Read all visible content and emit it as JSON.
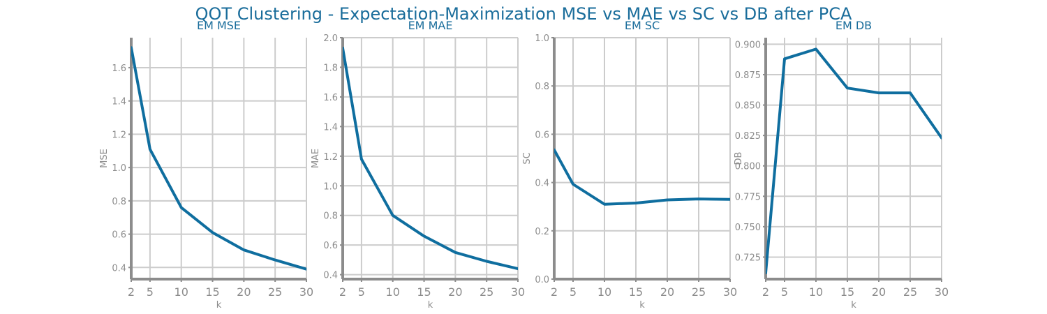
{
  "chart_data": {
    "title": "QOT Clustering - Expectation-Maximization MSE vs MAE vs SC vs DB after PCA",
    "colors": {
      "line": "#0f6e9f",
      "title": "#1a6d9b",
      "axis": "#8c8c8c",
      "grid": "#cccccc"
    },
    "plots": [
      {
        "type": "line",
        "title": "EM MSE",
        "xlabel": "k",
        "ylabel": "MSE",
        "x": [
          2,
          5,
          10,
          15,
          20,
          25,
          30
        ],
        "y": [
          1.72,
          1.11,
          0.76,
          0.61,
          0.505,
          0.445,
          0.39
        ],
        "xlim": [
          2,
          30
        ],
        "ylim": [
          0.33,
          1.78
        ],
        "xticks": [
          2,
          5,
          10,
          15,
          20,
          25,
          30
        ],
        "yticks": [
          0.4,
          0.6,
          0.8,
          1.0,
          1.2,
          1.4,
          1.6
        ],
        "yticklabels": [
          "0.4",
          "0.6",
          "0.8",
          "1.0",
          "1.2",
          "1.4",
          "1.6"
        ],
        "grid": true
      },
      {
        "type": "line",
        "title": "EM MAE",
        "xlabel": "k",
        "ylabel": "MAE",
        "x": [
          2,
          5,
          10,
          15,
          20,
          25,
          30
        ],
        "y": [
          1.93,
          1.18,
          0.8,
          0.66,
          0.55,
          0.49,
          0.44
        ],
        "xlim": [
          2,
          30
        ],
        "ylim": [
          0.37,
          2.0
        ],
        "xticks": [
          2,
          5,
          10,
          15,
          20,
          25,
          30
        ],
        "yticks": [
          0.4,
          0.6,
          0.8,
          1.0,
          1.2,
          1.4,
          1.6,
          1.8,
          2.0
        ],
        "yticklabels": [
          "0.4",
          "0.6",
          "0.8",
          "1.0",
          "1.2",
          "1.4",
          "1.6",
          "1.8",
          "2.0"
        ],
        "grid": true
      },
      {
        "type": "line",
        "title": "EM SC",
        "xlabel": "k",
        "ylabel": "SC",
        "x": [
          2,
          5,
          10,
          15,
          20,
          25,
          30
        ],
        "y": [
          0.535,
          0.393,
          0.31,
          0.315,
          0.328,
          0.332,
          0.33
        ],
        "xlim": [
          2,
          30
        ],
        "ylim": [
          0.0,
          1.0
        ],
        "xticks": [
          2,
          5,
          10,
          15,
          20,
          25,
          30
        ],
        "yticks": [
          0.0,
          0.2,
          0.4,
          0.6,
          0.8,
          1.0
        ],
        "yticklabels": [
          "0.0",
          "0.2",
          "0.4",
          "0.6",
          "0.8",
          "1.0"
        ],
        "grid": true
      },
      {
        "type": "line",
        "title": "EM DB",
        "xlabel": "k",
        "ylabel": "DB",
        "x": [
          2,
          5,
          10,
          15,
          20,
          25,
          30
        ],
        "y": [
          0.712,
          0.888,
          0.896,
          0.864,
          0.86,
          0.86,
          0.823
        ],
        "xlim": [
          2,
          30
        ],
        "ylim": [
          0.7069,
          0.9054
        ],
        "xticks": [
          2,
          5,
          10,
          15,
          20,
          25,
          30
        ],
        "yticks": [
          0.725,
          0.75,
          0.775,
          0.8,
          0.825,
          0.85,
          0.875,
          0.9
        ],
        "yticklabels": [
          "0.725",
          "0.750",
          "0.775",
          "0.800",
          "0.825",
          "0.850",
          "0.875",
          "0.900"
        ],
        "grid": true
      }
    ]
  }
}
